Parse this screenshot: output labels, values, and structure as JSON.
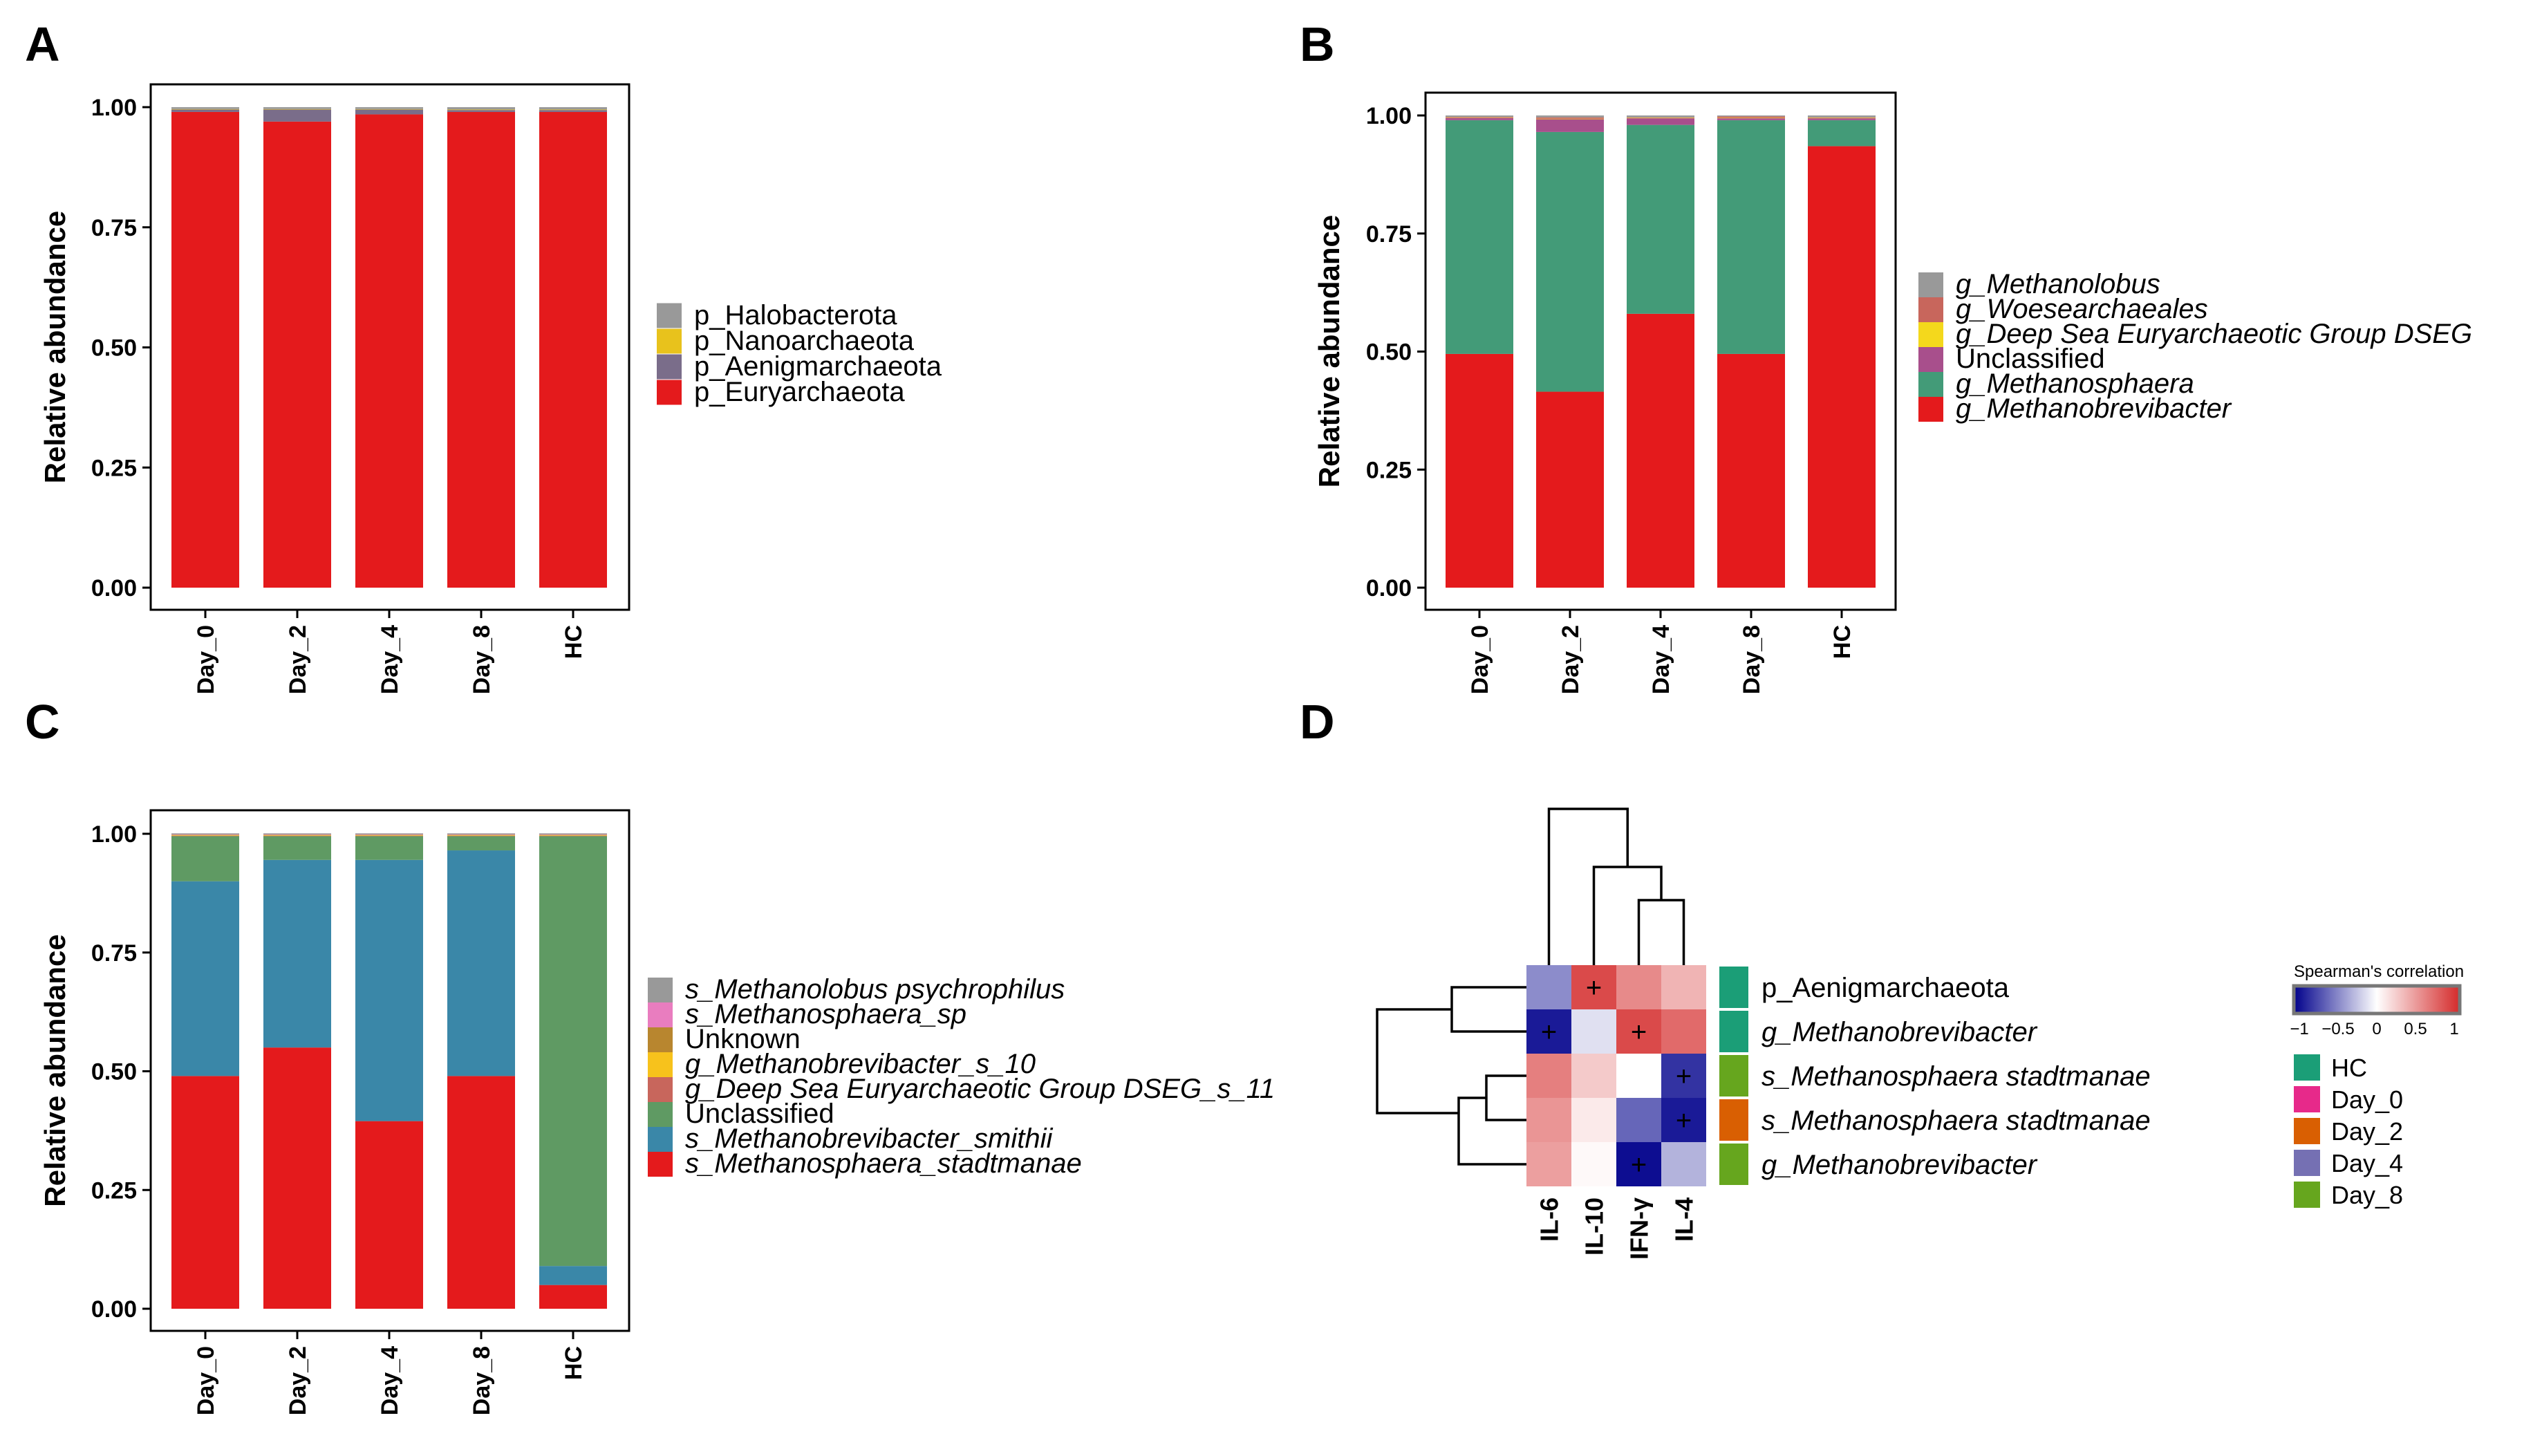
{
  "chart_data": [
    {
      "panel": "A",
      "type": "bar",
      "stacked": true,
      "ylabel": "Relative abundance",
      "xlabel": "",
      "ylim": [
        0,
        1
      ],
      "yticks": [
        "0.00",
        "0.25",
        "0.50",
        "0.75",
        "1.00"
      ],
      "categories": [
        "Day_0",
        "Day_2",
        "Day_4",
        "Day_8",
        "HC"
      ],
      "legend": [
        "p_Halobacterota",
        "p_Nanoarchaeota",
        "p_Aenigmarchaeota",
        "p_Euryarchaeota"
      ],
      "series": [
        {
          "name": "p_Euryarchaeota",
          "color": "#e41a1c",
          "values": [
            0.99,
            0.97,
            0.985,
            0.99,
            0.99
          ]
        },
        {
          "name": "p_Aenigmarchaeota",
          "color": "#7a6d8a",
          "values": [
            0.005,
            0.025,
            0.01,
            0.004,
            0.004
          ]
        },
        {
          "name": "p_Nanoarchaeota",
          "color": "#e8c21c",
          "values": [
            0.001,
            0.001,
            0.001,
            0.001,
            0.001
          ]
        },
        {
          "name": "p_Halobacterota",
          "color": "#999999",
          "values": [
            0.004,
            0.004,
            0.004,
            0.005,
            0.005
          ]
        }
      ]
    },
    {
      "panel": "B",
      "type": "bar",
      "stacked": true,
      "ylabel": "Relative abundance",
      "xlabel": "",
      "ylim": [
        0,
        1
      ],
      "yticks": [
        "0.00",
        "0.25",
        "0.50",
        "0.75",
        "1.00"
      ],
      "categories": [
        "Day_0",
        "Day_2",
        "Day_4",
        "Day_8",
        "HC"
      ],
      "legend": [
        "g_Methanolobus",
        "g_Woesearchaeales",
        "g_Deep Sea Euryarchaeotic Group DSEG",
        "Unclassified",
        "g_Methanosphaera",
        "g_Methanobrevibacter"
      ],
      "series": [
        {
          "name": "g_Methanobrevibacter",
          "color": "#e41a1c",
          "values": [
            0.495,
            0.415,
            0.58,
            0.495,
            0.935
          ]
        },
        {
          "name": "g_Methanosphaera",
          "color": "#439b78",
          "values": [
            0.495,
            0.55,
            0.4,
            0.495,
            0.055
          ]
        },
        {
          "name": "Unclassified",
          "color": "#a84f8c",
          "values": [
            0.005,
            0.027,
            0.014,
            0.004,
            0.004
          ]
        },
        {
          "name": "g_Deep Sea Euryarchaeotic Group DSEG",
          "color": "#f4d81c",
          "values": [
            0.001,
            0.001,
            0.001,
            0.001,
            0.001
          ]
        },
        {
          "name": "g_Woesearchaeales",
          "color": "#c8665c",
          "values": [
            0.001,
            0.003,
            0.001,
            0.003,
            0.001
          ]
        },
        {
          "name": "g_Methanolobus",
          "color": "#999999",
          "values": [
            0.003,
            0.004,
            0.004,
            0.002,
            0.004
          ]
        }
      ]
    },
    {
      "panel": "C",
      "type": "bar",
      "stacked": true,
      "ylabel": "Relative abundance",
      "xlabel": "",
      "ylim": [
        0,
        1
      ],
      "yticks": [
        "0.00",
        "0.25",
        "0.50",
        "0.75",
        "1.00"
      ],
      "categories": [
        "Day_0",
        "Day_2",
        "Day_4",
        "Day_8",
        "HC"
      ],
      "legend": [
        "s_Methanolobus psychrophilus",
        "s_Methanosphaera_sp",
        "Unknown",
        "g_Methanobrevibacter_s_10",
        "g_Deep Sea Euryarchaeotic Group DSEG_s_11",
        "Unclassified",
        "s_Methanobrevibacter_smithii",
        "s_Methanosphaera_stadtmanae"
      ],
      "series": [
        {
          "name": "s_Methanosphaera_stadtmanae",
          "color": "#e41a1c",
          "values": [
            0.49,
            0.55,
            0.395,
            0.49,
            0.05
          ]
        },
        {
          "name": "s_Methanobrevibacter_smithii",
          "color": "#3a87a8",
          "values": [
            0.41,
            0.395,
            0.55,
            0.475,
            0.04
          ]
        },
        {
          "name": "Unclassified",
          "color": "#5f9a63",
          "values": [
            0.095,
            0.05,
            0.05,
            0.03,
            0.905
          ]
        },
        {
          "name": "g_Deep Sea Euryarchaeotic Group DSEG_s_11",
          "color": "#c8665c",
          "values": [
            0.001,
            0.001,
            0.001,
            0.001,
            0.001
          ]
        },
        {
          "name": "g_Methanobrevibacter_s_10",
          "color": "#f7c21c",
          "values": [
            0.001,
            0.001,
            0.001,
            0.001,
            0.001
          ]
        },
        {
          "name": "Unknown",
          "color": "#b8862f",
          "values": [
            0.001,
            0.001,
            0.001,
            0.001,
            0.001
          ]
        },
        {
          "name": "s_Methanosphaera_sp",
          "color": "#e97dbf",
          "values": [
            0.001,
            0.001,
            0.001,
            0.001,
            0.001
          ]
        },
        {
          "name": "s_Methanolobus psychrophilus",
          "color": "#999999",
          "values": [
            0.002,
            0.002,
            0.002,
            0.002,
            0.002
          ]
        }
      ]
    },
    {
      "panel": "D",
      "type": "heatmap",
      "columns": [
        "IL-6",
        "IL-10",
        "IFN-γ",
        "IL-4"
      ],
      "rows": [
        "p_Aenigmarchaeota",
        "g_Methanobrevibacter",
        "s_Methanosphaera stadtmanae",
        "s_Methanosphaera stadtmanae",
        "g_Methanobrevibacter"
      ],
      "row_groups": [
        "HC",
        "HC",
        "Day_8",
        "Day_2",
        "Day_8"
      ],
      "values": [
        [
          -0.45,
          0.85,
          0.55,
          0.35
        ],
        [
          -0.9,
          -0.12,
          0.85,
          0.7
        ],
        [
          0.6,
          0.25,
          0.0,
          -0.8
        ],
        [
          0.5,
          0.1,
          -0.6,
          -0.9
        ],
        [
          0.45,
          0.03,
          -0.95,
          -0.3
        ]
      ],
      "significant": [
        [
          false,
          true,
          false,
          false
        ],
        [
          true,
          false,
          true,
          false
        ],
        [
          false,
          false,
          false,
          true
        ],
        [
          false,
          false,
          false,
          true
        ],
        [
          false,
          false,
          true,
          false
        ]
      ],
      "sig_marker": "+",
      "colorbar": {
        "title": "Spearman's correlation",
        "ticks": [
          "−1",
          "−0.5",
          "0",
          "0.5",
          "1"
        ],
        "range": [
          -1,
          1
        ],
        "low": "#00008b",
        "mid": "#ffffff",
        "high": "#d42a2a"
      },
      "group_legend": [
        {
          "label": "HC",
          "color": "#1b9e77"
        },
        {
          "label": "Day_0",
          "color": "#e7298a"
        },
        {
          "label": "Day_2",
          "color": "#d95f02"
        },
        {
          "label": "Day_4",
          "color": "#7570b3"
        },
        {
          "label": "Day_8",
          "color": "#66a61e"
        }
      ]
    }
  ],
  "panels": {
    "A": "A",
    "B": "B",
    "C": "C",
    "D": "D"
  }
}
